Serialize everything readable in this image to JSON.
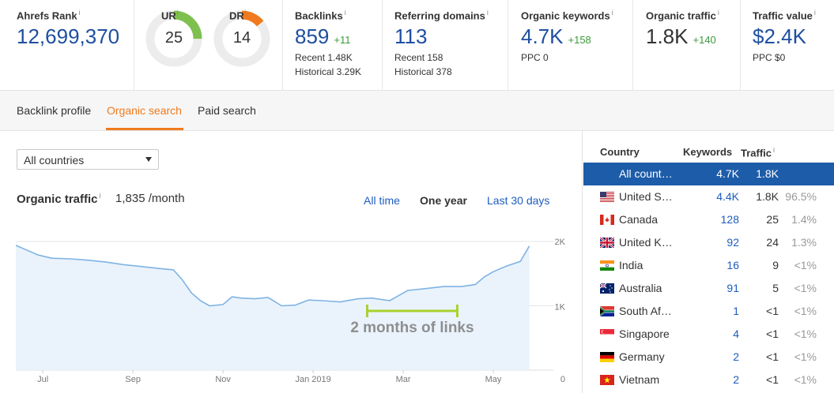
{
  "metrics": {
    "ahrefs_rank": {
      "title": "Ahrefs Rank",
      "value": "12,699,370"
    },
    "ur": {
      "title": "UR",
      "value": "25",
      "fill": 0.25,
      "color": "#7ec04d"
    },
    "dr": {
      "title": "DR",
      "value": "14",
      "fill": 0.14,
      "color": "#f07a1d"
    },
    "backlinks": {
      "title": "Backlinks",
      "value": "859",
      "delta": "+11",
      "recent": "Recent 1.48K",
      "historical": "Historical 3.29K"
    },
    "referring_domains": {
      "title": "Referring domains",
      "value": "113",
      "recent": "Recent 158",
      "historical": "Historical 378"
    },
    "organic_keywords": {
      "title": "Organic keywords",
      "value": "4.7K",
      "delta": "+158",
      "sub": "PPC 0"
    },
    "organic_traffic": {
      "title": "Organic traffic",
      "value": "1.8K",
      "delta": "+140"
    },
    "traffic_value": {
      "title": "Traffic value",
      "value": "$2.4K",
      "sub": "PPC $0"
    },
    "info_glyph": "i"
  },
  "tabs": {
    "backlink_profile": "Backlink profile",
    "organic_search": "Organic search",
    "paid_search": "Paid search"
  },
  "country_select": {
    "value": "All countries"
  },
  "organic_traffic_panel": {
    "title": "Organic traffic",
    "value": "1,835 /month",
    "ranges": {
      "all_time": "All time",
      "one_year": "One year",
      "last_30_days": "Last 30 days"
    }
  },
  "chart_data": {
    "type": "area",
    "title": "",
    "xlabel": "",
    "ylabel": "",
    "ylim": [
      0,
      2000
    ],
    "y_ticks": [
      "2K",
      "1K",
      "0"
    ],
    "x_ticks": [
      "Jul",
      "Sep",
      "Nov",
      "Jan 2019",
      "Mar",
      "May"
    ],
    "x_tick_months": [
      0,
      2,
      4,
      6,
      8,
      10
    ],
    "series": [
      {
        "month_offset": [
          0,
          0.2,
          0.5,
          0.8,
          1.2,
          1.6,
          2.0,
          2.4,
          2.8,
          3.2,
          3.5,
          3.7,
          3.9,
          4.1,
          4.3,
          4.6,
          4.8,
          5.0,
          5.3,
          5.6,
          5.9,
          6.2,
          6.5,
          6.8,
          7.2,
          7.6,
          7.9,
          8.3,
          8.7,
          9.0,
          9.5,
          9.9,
          10.2,
          10.4,
          10.6,
          10.9,
          11.2,
          11.4
        ],
        "values": [
          1940,
          1880,
          1790,
          1740,
          1730,
          1710,
          1680,
          1640,
          1610,
          1580,
          1560,
          1400,
          1200,
          1080,
          1000,
          1020,
          1140,
          1120,
          1110,
          1130,
          1000,
          1010,
          1090,
          1080,
          1060,
          1110,
          1120,
          1080,
          1240,
          1260,
          1300,
          1300,
          1330,
          1450,
          1530,
          1620,
          1690,
          1930
        ]
      }
    ],
    "annotation": "2 months of links",
    "annotation_start_month": 7.8,
    "annotation_end_month": 9.8
  },
  "country_table": {
    "headers": {
      "country": "Country",
      "keywords": "Keywords",
      "traffic": "Traffic"
    },
    "rows": [
      {
        "flag": "none",
        "country": "All count…",
        "keywords": "4.7K",
        "traffic": "1.8K",
        "pct": ""
      },
      {
        "flag": "us-flag-icon",
        "country": "United S…",
        "keywords": "4.4K",
        "traffic": "1.8K",
        "pct": "96.5%"
      },
      {
        "flag": "ca-flag-icon",
        "country": "Canada",
        "keywords": "128",
        "traffic": "25",
        "pct": "1.4%"
      },
      {
        "flag": "gb-flag-icon",
        "country": "United K…",
        "keywords": "92",
        "traffic": "24",
        "pct": "1.3%"
      },
      {
        "flag": "in-flag-icon",
        "country": "India",
        "keywords": "16",
        "traffic": "9",
        "pct": "<1%"
      },
      {
        "flag": "au-flag-icon",
        "country": "Australia",
        "keywords": "91",
        "traffic": "5",
        "pct": "<1%"
      },
      {
        "flag": "za-flag-icon",
        "country": "South Af…",
        "keywords": "1",
        "traffic": "<1",
        "pct": "<1%"
      },
      {
        "flag": "sg-flag-icon",
        "country": "Singapore",
        "keywords": "4",
        "traffic": "<1",
        "pct": "<1%"
      },
      {
        "flag": "de-flag-icon",
        "country": "Germany",
        "keywords": "2",
        "traffic": "<1",
        "pct": "<1%"
      },
      {
        "flag": "vn-flag-icon",
        "country": "Vietnam",
        "keywords": "2",
        "traffic": "<1",
        "pct": "<1%"
      }
    ]
  },
  "colors": {
    "accent_orange": "#f07a1d",
    "link_blue": "#1e5cc0",
    "selected_row": "#1d5ca9",
    "chart_line": "#7fb3e3",
    "chart_fill": "#eaf3fc",
    "annotation": "#a8d12e"
  }
}
